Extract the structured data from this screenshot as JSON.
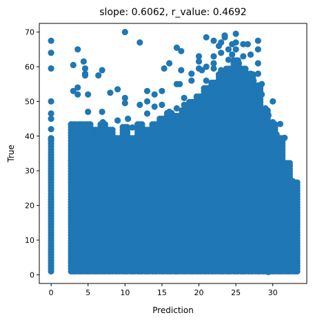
{
  "chart_data": {
    "type": "scatter",
    "title": "slope: 0.6062, r_value: 0.4692",
    "xlabel": "Prediction",
    "ylabel": "True",
    "xlim": [
      -1.6,
      34.6
    ],
    "ylim": [
      -2.5,
      72.5
    ],
    "xticks": [
      0,
      5,
      10,
      15,
      20,
      25,
      30
    ],
    "yticks": [
      0,
      10,
      20,
      30,
      40,
      50,
      60,
      70
    ],
    "grid": false,
    "legend": "none",
    "color": "#1f77b4",
    "dense_bands": [
      {
        "x": 0,
        "y": [
          1,
          40
        ]
      },
      {
        "x_range": [
          3,
          30
        ],
        "y_range": [
          1,
          25
        ]
      }
    ],
    "column_tops": [
      {
        "x": 3,
        "top": 44
      },
      {
        "x": 4,
        "top": 44
      },
      {
        "x": 5,
        "top": 44
      },
      {
        "x": 6,
        "top": 42
      },
      {
        "x": 7,
        "top": 44
      },
      {
        "x": 8,
        "top": 42
      },
      {
        "x": 9,
        "top": 40
      },
      {
        "x": 10,
        "top": 43
      },
      {
        "x": 11,
        "top": 40
      },
      {
        "x": 12,
        "top": 44
      },
      {
        "x": 13,
        "top": 42
      },
      {
        "x": 14,
        "top": 44
      },
      {
        "x": 15,
        "top": 45
      },
      {
        "x": 16,
        "top": 47
      },
      {
        "x": 17,
        "top": 46
      },
      {
        "x": 18,
        "top": 48
      },
      {
        "x": 19,
        "top": 50
      },
      {
        "x": 20,
        "top": 52
      },
      {
        "x": 21,
        "top": 54
      },
      {
        "x": 22,
        "top": 56
      },
      {
        "x": 23,
        "top": 58
      },
      {
        "x": 24,
        "top": 60
      },
      {
        "x": 25,
        "top": 62
      },
      {
        "x": 26,
        "top": 60
      },
      {
        "x": 27,
        "top": 58
      },
      {
        "x": 28,
        "top": 55
      },
      {
        "x": 29,
        "top": 48
      },
      {
        "x": 30,
        "top": 44
      },
      {
        "x": 31,
        "top": 40
      },
      {
        "x": 32,
        "top": 33
      },
      {
        "x": 33,
        "top": 27
      }
    ],
    "points": [
      [
        0,
        67.5
      ],
      [
        0,
        64
      ],
      [
        0,
        59.5
      ],
      [
        0,
        50
      ],
      [
        0,
        46.5
      ],
      [
        0,
        45
      ],
      [
        0,
        42
      ],
      [
        0,
        39
      ],
      [
        3,
        60.5
      ],
      [
        3,
        53
      ],
      [
        3.6,
        65
      ],
      [
        3.6,
        54
      ],
      [
        3.6,
        52
      ],
      [
        4.4,
        61.5
      ],
      [
        4.6,
        59.5
      ],
      [
        4.6,
        58
      ],
      [
        4.6,
        57.5
      ],
      [
        5,
        47
      ],
      [
        5,
        52
      ],
      [
        6.4,
        57.5
      ],
      [
        6.9,
        59
      ],
      [
        6.9,
        47
      ],
      [
        7,
        44
      ],
      [
        8,
        52.5
      ],
      [
        9,
        53.5
      ],
      [
        9,
        44.5
      ],
      [
        10,
        70
      ],
      [
        10,
        51
      ],
      [
        10,
        49.5
      ],
      [
        10.4,
        45
      ],
      [
        11,
        42.5
      ],
      [
        12,
        67
      ],
      [
        12,
        49
      ],
      [
        13,
        53
      ],
      [
        13,
        50
      ],
      [
        13,
        46.5
      ],
      [
        14,
        52
      ],
      [
        14,
        48.5
      ],
      [
        15,
        53
      ],
      [
        15,
        49
      ],
      [
        15,
        44.5
      ],
      [
        15.3,
        59.5
      ],
      [
        16,
        61
      ],
      [
        16,
        47
      ],
      [
        16,
        45
      ],
      [
        17,
        65.5
      ],
      [
        17,
        55
      ],
      [
        17,
        48
      ],
      [
        17.4,
        55
      ],
      [
        17.6,
        64.5
      ],
      [
        17.6,
        59
      ],
      [
        18,
        51
      ],
      [
        18,
        49
      ],
      [
        19,
        58
      ],
      [
        19,
        56
      ],
      [
        19,
        49
      ],
      [
        20,
        61.5
      ],
      [
        20,
        63
      ],
      [
        20,
        59.5
      ],
      [
        20.4,
        59
      ],
      [
        21,
        68.5
      ],
      [
        21,
        60
      ],
      [
        21,
        56
      ],
      [
        22,
        67.5
      ],
      [
        22,
        63
      ],
      [
        22,
        61
      ],
      [
        22,
        59.5
      ],
      [
        22.7,
        66
      ],
      [
        23,
        67
      ],
      [
        23,
        64
      ],
      [
        23,
        59
      ],
      [
        23.5,
        69
      ],
      [
        23.5,
        68.5
      ],
      [
        24,
        65
      ],
      [
        24,
        62
      ],
      [
        24.5,
        66.5
      ],
      [
        24.5,
        63.5
      ],
      [
        25,
        69.5
      ],
      [
        25,
        67
      ],
      [
        25,
        65
      ],
      [
        25.4,
        61
      ],
      [
        25.4,
        60
      ],
      [
        26,
        66.5
      ],
      [
        26,
        63
      ],
      [
        26.6,
        66.5
      ],
      [
        27,
        63.5
      ],
      [
        27,
        58
      ],
      [
        27.4,
        56
      ],
      [
        28,
        67.5
      ],
      [
        28,
        65
      ],
      [
        28,
        61
      ],
      [
        28,
        58
      ],
      [
        28.5,
        55
      ],
      [
        28.5,
        52
      ],
      [
        29,
        48
      ],
      [
        29,
        47
      ],
      [
        29.4,
        46
      ],
      [
        30,
        50
      ],
      [
        30,
        44
      ],
      [
        30,
        42
      ],
      [
        30.5,
        40.5
      ],
      [
        31,
        43.5
      ],
      [
        31,
        39
      ],
      [
        31,
        37.5
      ],
      [
        31.6,
        39.5
      ],
      [
        32,
        32
      ],
      [
        32,
        30
      ],
      [
        32,
        27
      ],
      [
        32.3,
        21.5
      ],
      [
        32,
        14.5
      ],
      [
        32,
        13
      ],
      [
        32.7,
        27
      ],
      [
        33.2,
        21.5
      ],
      [
        33.2,
        14.5
      ],
      [
        31,
        10.5
      ],
      [
        31,
        7
      ],
      [
        31,
        5
      ],
      [
        31,
        3
      ],
      [
        32,
        7.5
      ],
      [
        30,
        2.5
      ],
      [
        30,
        1.8
      ],
      [
        29.4,
        0.8
      ]
    ]
  }
}
